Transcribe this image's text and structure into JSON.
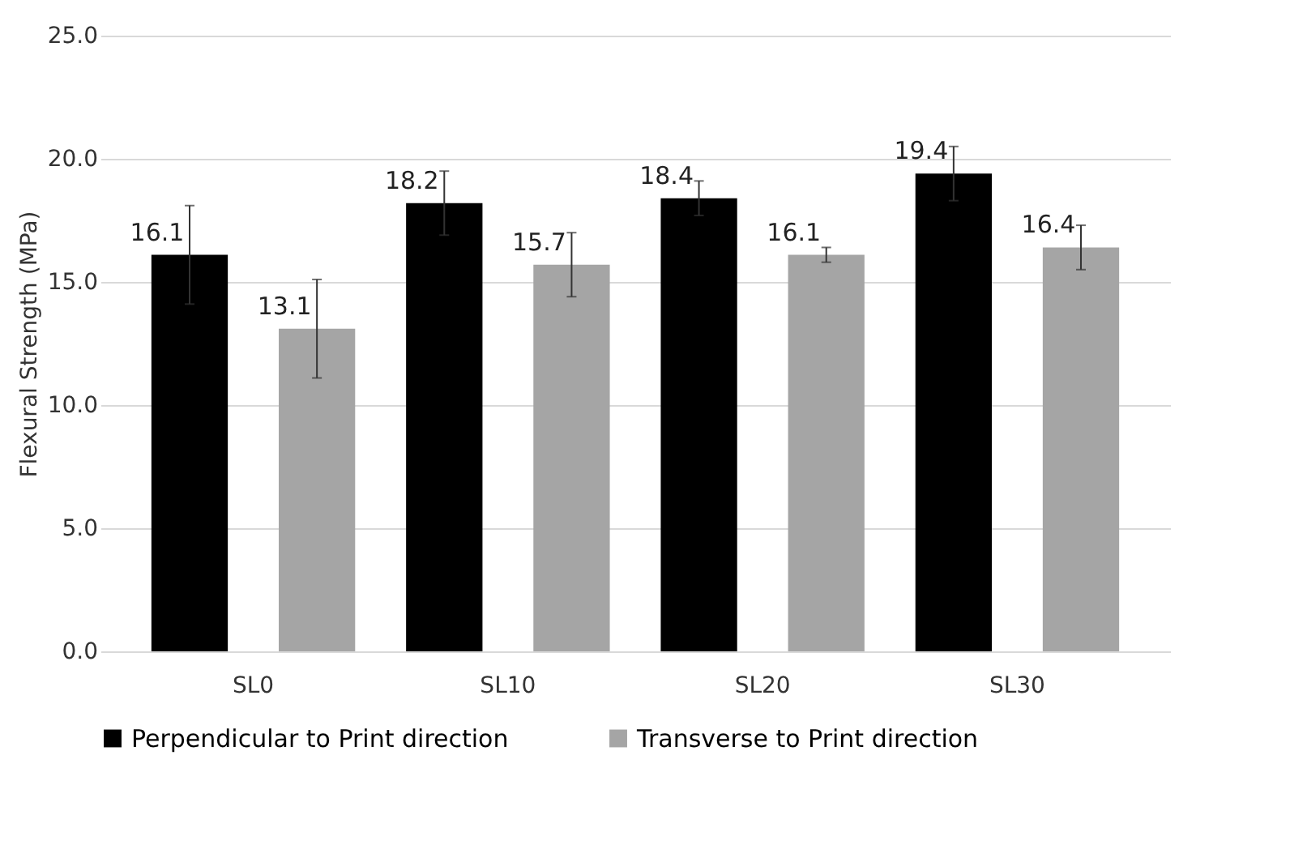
{
  "chart_data": {
    "type": "bar",
    "ylabel": "Flexural Strength (MPa)",
    "categories": [
      "SL0",
      "SL10",
      "SL20",
      "SL30"
    ],
    "series": [
      {
        "name": "Perpendicular to Print direction",
        "color": "#000000",
        "values": [
          16.1,
          18.2,
          18.4,
          19.4
        ],
        "errors": [
          2.0,
          1.3,
          0.7,
          1.1
        ]
      },
      {
        "name": "Transverse to Print direction",
        "color": "#a5a5a5",
        "values": [
          13.1,
          15.7,
          16.1,
          16.4
        ],
        "errors": [
          2.0,
          1.3,
          0.3,
          0.9
        ]
      }
    ],
    "ylim": [
      0,
      25
    ],
    "yticks": [
      {
        "value": 0,
        "label": "0.0"
      },
      {
        "value": 5,
        "label": "5.0"
      },
      {
        "value": 10,
        "label": "10.0"
      },
      {
        "value": 15,
        "label": "15.0"
      },
      {
        "value": 20,
        "label": "20.0"
      },
      {
        "value": 25,
        "label": "25.0"
      }
    ],
    "grid": "y",
    "legend": "bottom",
    "data_labels": true
  }
}
